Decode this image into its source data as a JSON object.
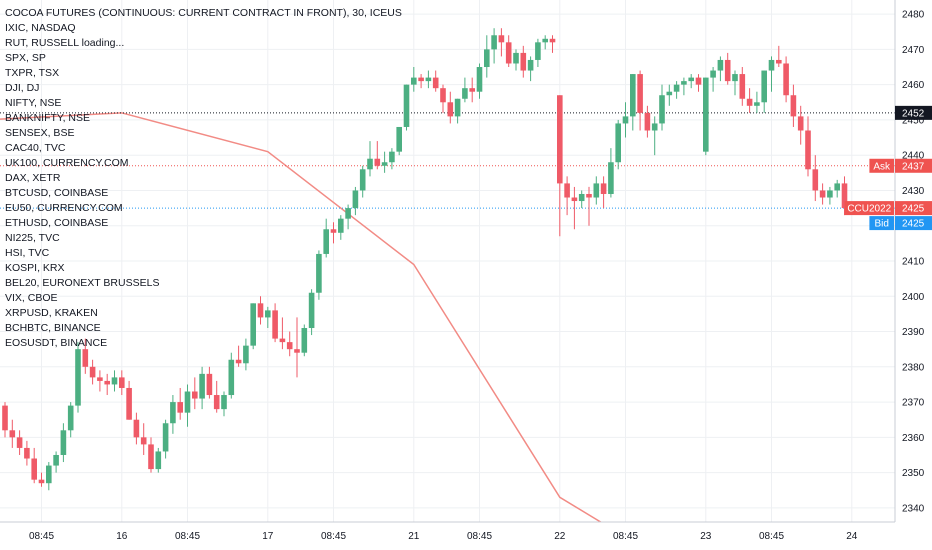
{
  "header": {
    "title": "COCOA FUTURES (CONTINUOUS: CURRENT CONTRACT IN FRONT), 30, ICEUS"
  },
  "legend_items": [
    "IXIC, NASDAQ",
    "RUT, RUSSELL loading...",
    "SPX, SP",
    "TXPR, TSX",
    "DJI, DJ",
    "NIFTY, NSE",
    "BANKNIFTY, NSE",
    "SENSEX, BSE",
    "CAC40, TVC",
    "UK100, CURRENCY.COM",
    "DAX, XETR",
    "BTCUSD, COINBASE",
    "EU50, CURRENCY.COM",
    "ETHUSD, COINBASE",
    "NI225, TVC",
    "HSI, TVC",
    "KOSPI, KRX",
    "BEL20, EURONEXT BRUSSELS",
    "VIX, CBOE",
    "XRPUSD, KRAKEN",
    "BCHBTC, BINANCE",
    "EOSUSDT, BINANCE"
  ],
  "colors": {
    "up": "#4caf82",
    "down": "#ef5a67",
    "overlay_line": "#f28b85",
    "grid": "#eef0f3",
    "ask": "#ef5350",
    "bid": "#2196f3",
    "last": "#ef5350",
    "black_line": "#131722"
  },
  "chart_data": {
    "type": "candlestick",
    "title": "COCOA FUTURES (CONTINUOUS: CURRENT CONTRACT IN FRONT), 30, ICEUS",
    "ylim": [
      2336,
      2484
    ],
    "y_ticks": [
      2340,
      2350,
      2360,
      2370,
      2380,
      2390,
      2400,
      2410,
      2420,
      2430,
      2440,
      2450,
      2460,
      2470,
      2480
    ],
    "x_tick_labels": [
      "08:45",
      "16",
      "08:45",
      "17",
      "08:45",
      "21",
      "08:45",
      "22",
      "08:45",
      "23",
      "08:45",
      "24"
    ],
    "x_tick_bar_index": [
      5,
      16,
      25,
      36,
      45,
      56,
      65,
      76,
      85,
      96,
      105,
      116
    ],
    "grid": true,
    "price_labels": [
      {
        "label": "",
        "value": 2452,
        "color": "black"
      },
      {
        "label": "Ask",
        "value": 2437,
        "color": "ask"
      },
      {
        "label": "CCU2022",
        "value": 2425,
        "color": "last"
      },
      {
        "label": "Bid",
        "value": 2425,
        "color": "bid"
      }
    ],
    "dotted_lines": [
      {
        "value": 2452,
        "color": "black_line"
      },
      {
        "value": 2437,
        "color": "ask"
      },
      {
        "value": 2425,
        "color": "bid"
      }
    ],
    "overlay_series": {
      "bar_index": [
        -12,
        16,
        36,
        56,
        76,
        84
      ],
      "values": [
        2449,
        2452,
        2441,
        2409,
        2343,
        2333
      ]
    },
    "candles": [
      [
        2369,
        2370,
        2360,
        2362
      ],
      [
        2362,
        2365,
        2357,
        2360
      ],
      [
        2360,
        2362,
        2355,
        2357
      ],
      [
        2357,
        2359,
        2352,
        2354
      ],
      [
        2354,
        2357,
        2347,
        2348
      ],
      [
        2348,
        2350,
        2346,
        2347
      ],
      [
        2347,
        2353,
        2345,
        2352
      ],
      [
        2352,
        2356,
        2350,
        2355
      ],
      [
        2355,
        2364,
        2353,
        2362
      ],
      [
        2362,
        2370,
        2360,
        2369
      ],
      [
        2369,
        2387,
        2367,
        2385
      ],
      [
        2385,
        2388,
        2378,
        2380
      ],
      [
        2380,
        2382,
        2375,
        2377
      ],
      [
        2377,
        2379,
        2373,
        2376
      ],
      [
        2376,
        2378,
        2372,
        2375
      ],
      [
        2375,
        2379,
        2373,
        2377
      ],
      [
        2377,
        2379,
        2372,
        2374
      ],
      [
        2374,
        2376,
        2365,
        2365
      ],
      [
        2365,
        2367,
        2358,
        2360
      ],
      [
        2360,
        2364,
        2355,
        2358
      ],
      [
        2358,
        2360,
        2350,
        2351
      ],
      [
        2351,
        2357,
        2350,
        2356
      ],
      [
        2356,
        2365,
        2354,
        2364
      ],
      [
        2364,
        2372,
        2361,
        2370
      ],
      [
        2370,
        2374,
        2365,
        2367
      ],
      [
        2367,
        2375,
        2363,
        2373
      ],
      [
        2373,
        2377,
        2368,
        2371
      ],
      [
        2371,
        2380,
        2368,
        2378
      ],
      [
        2378,
        2380,
        2371,
        2372
      ],
      [
        2372,
        2376,
        2367,
        2368
      ],
      [
        2368,
        2373,
        2366,
        2372
      ],
      [
        2372,
        2384,
        2371,
        2382
      ],
      [
        2382,
        2386,
        2380,
        2381
      ],
      [
        2381,
        2388,
        2379,
        2386
      ],
      [
        2386,
        2398,
        2385,
        2398
      ],
      [
        2398,
        2400,
        2392,
        2394
      ],
      [
        2394,
        2397,
        2391,
        2396
      ],
      [
        2396,
        2398,
        2387,
        2388
      ],
      [
        2388,
        2394,
        2385,
        2387
      ],
      [
        2387,
        2390,
        2383,
        2385
      ],
      [
        2385,
        2394,
        2377,
        2384
      ],
      [
        2384,
        2392,
        2383,
        2391
      ],
      [
        2391,
        2402,
        2389,
        2401
      ],
      [
        2401,
        2413,
        2399,
        2412
      ],
      [
        2412,
        2422,
        2411,
        2419
      ],
      [
        2419,
        2421,
        2415,
        2418
      ],
      [
        2418,
        2423,
        2416,
        2422
      ],
      [
        2422,
        2426,
        2419,
        2425
      ],
      [
        2425,
        2431,
        2423,
        2430
      ],
      [
        2430,
        2437,
        2428,
        2436
      ],
      [
        2436,
        2444,
        2434,
        2439
      ],
      [
        2439,
        2444,
        2436,
        2437
      ],
      [
        2437,
        2441,
        2435,
        2438
      ],
      [
        2438,
        2442,
        2436,
        2441
      ],
      [
        2441,
        2448,
        2440,
        2448
      ],
      [
        2448,
        2460,
        2447,
        2460
      ],
      [
        2460,
        2465,
        2458,
        2462
      ],
      [
        2462,
        2463,
        2459,
        2461
      ],
      [
        2461,
        2464,
        2459,
        2462
      ],
      [
        2462,
        2464,
        2458,
        2459
      ],
      [
        2459,
        2460,
        2452,
        2455
      ],
      [
        2455,
        2458,
        2449,
        2451
      ],
      [
        2451,
        2456,
        2449,
        2456
      ],
      [
        2456,
        2462,
        2455,
        2459
      ],
      [
        2459,
        2462,
        2455,
        2458
      ],
      [
        2458,
        2466,
        2456,
        2465
      ],
      [
        2465,
        2474,
        2462,
        2470
      ],
      [
        2470,
        2476,
        2466,
        2474
      ],
      [
        2474,
        2476,
        2468,
        2472
      ],
      [
        2472,
        2474,
        2465,
        2466
      ],
      [
        2466,
        2470,
        2464,
        2469
      ],
      [
        2469,
        2471,
        2462,
        2464
      ],
      [
        2464,
        2468,
        2461,
        2467
      ],
      [
        2467,
        2473,
        2465,
        2472
      ],
      [
        2472,
        2474,
        2470,
        2473
      ],
      [
        2473,
        2474,
        2469,
        2472
      ],
      [
        2457,
        2457,
        2417,
        2432
      ],
      [
        2432,
        2434,
        2423,
        2428
      ],
      [
        2428,
        2431,
        2419,
        2427
      ],
      [
        2427,
        2430,
        2425,
        2429
      ],
      [
        2429,
        2431,
        2420,
        2428
      ],
      [
        2428,
        2434,
        2426,
        2432
      ],
      [
        2432,
        2434,
        2425,
        2429
      ],
      [
        2429,
        2442,
        2428,
        2438
      ],
      [
        2438,
        2450,
        2436,
        2449
      ],
      [
        2449,
        2455,
        2445,
        2451
      ],
      [
        2451,
        2463,
        2447,
        2463
      ],
      [
        2463,
        2464,
        2447,
        2452
      ],
      [
        2452,
        2454,
        2445,
        2447
      ],
      [
        2447,
        2451,
        2440,
        2449
      ],
      [
        2449,
        2460,
        2447,
        2457
      ],
      [
        2457,
        2460,
        2454,
        2458
      ],
      [
        2458,
        2461,
        2456,
        2460
      ],
      [
        2460,
        2462,
        2457,
        2461
      ],
      [
        2461,
        2463,
        2459,
        2462
      ],
      [
        2462,
        2463,
        2458,
        2460
      ],
      [
        2441,
        2462,
        2440,
        2462
      ],
      [
        2462,
        2465,
        2458,
        2464
      ],
      [
        2464,
        2468,
        2461,
        2467
      ],
      [
        2467,
        2469,
        2460,
        2461
      ],
      [
        2461,
        2464,
        2457,
        2463
      ],
      [
        2463,
        2465,
        2454,
        2456
      ],
      [
        2456,
        2459,
        2452,
        2454
      ],
      [
        2454,
        2458,
        2452,
        2455
      ],
      [
        2455,
        2464,
        2452,
        2464
      ],
      [
        2464,
        2468,
        2458,
        2467
      ],
      [
        2467,
        2471,
        2465,
        2466
      ],
      [
        2466,
        2468,
        2455,
        2457
      ],
      [
        2457,
        2460,
        2448,
        2451
      ],
      [
        2451,
        2454,
        2443,
        2447
      ],
      [
        2447,
        2451,
        2434,
        2436
      ],
      [
        2436,
        2440,
        2427,
        2430
      ],
      [
        2430,
        2432,
        2426,
        2428
      ],
      [
        2428,
        2431,
        2426,
        2430
      ],
      [
        2430,
        2433,
        2428,
        2432
      ],
      [
        2432,
        2434,
        2423,
        2425
      ]
    ]
  }
}
